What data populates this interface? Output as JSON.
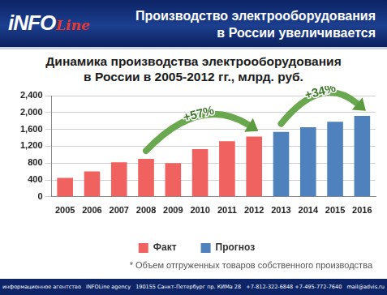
{
  "header": {
    "logo": [
      "iNFO",
      "Line"
    ],
    "title": [
      "Производство электрооборудования",
      "в России увеличивается"
    ]
  },
  "chart_data": {
    "type": "bar",
    "title": [
      "Динамика производства электрооборудования",
      "в России в 2005-2012 гг., млрд. руб."
    ],
    "categories": [
      "2005",
      "2006",
      "2007",
      "2008",
      "2009",
      "2010",
      "2011",
      "2012",
      "2013",
      "2014",
      "2015",
      "2016"
    ],
    "series": [
      {
        "name": "Факт",
        "color": "#f0625f",
        "values": [
          450,
          600,
          820,
          900,
          800,
          1130,
          1320,
          1430,
          null,
          null,
          null,
          null
        ]
      },
      {
        "name": "Прогноз",
        "color": "#4f81bd",
        "values": [
          null,
          null,
          null,
          null,
          null,
          null,
          null,
          null,
          1540,
          1650,
          1780,
          1920
        ]
      }
    ],
    "ylim": [
      0,
      2400
    ],
    "yticks": [
      0,
      400,
      800,
      1200,
      1600,
      2000,
      2400
    ],
    "grid": true,
    "legend": "bottom",
    "annotations": [
      "+57%",
      "+34%"
    ]
  },
  "footnote": "* Объем отгруженных товаров собственного производства",
  "footer": [
    "информационное агентство",
    "INFOLine agency",
    "190155 Санкт-Петербург пр. КИМа 28",
    "+7-812-322-6848 +7-495-772-7640",
    "mail@advis.ru"
  ]
}
